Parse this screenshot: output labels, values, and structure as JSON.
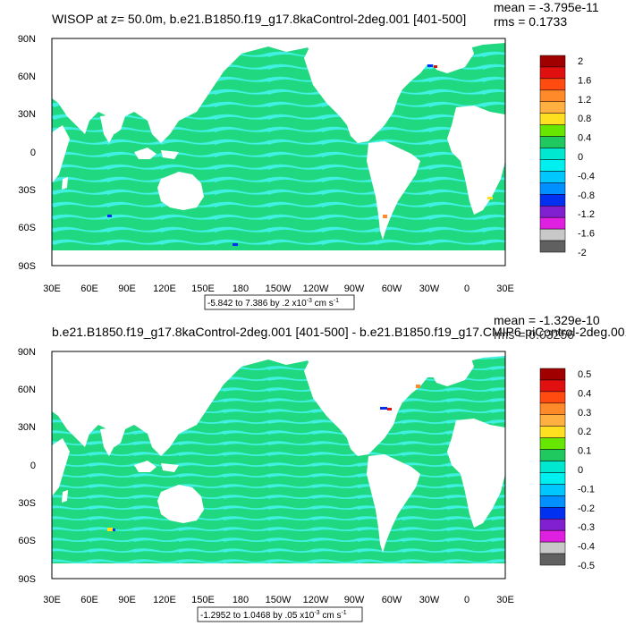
{
  "panels": [
    {
      "title": "WISOP at z=  50.0m, b.e21.B1850.f19_g17.8kaControl-2deg.001 [401-500]",
      "mean": "mean = -3.795e-11",
      "rms": "rms = 0.1733",
      "range_label": "-5.842 to 7.386 by .2 x10",
      "range_exp": "-3",
      "range_unit": " cm s",
      "range_unit_exp": "-1",
      "colorbar": {
        "labels": [
          "2",
          "1.6",
          "1.2",
          "0.8",
          "0.4",
          "0",
          "-0.4",
          "-0.8",
          "-1.2",
          "-1.6",
          "-2"
        ],
        "colors": [
          "#a00000",
          "#e01010",
          "#ff4a10",
          "#ff8a2a",
          "#ffb040",
          "#ffe020",
          "#66e600",
          "#20c860",
          "#00e8d0",
          "#00f0f0",
          "#00c8ff",
          "#0090ff",
          "#0030f0",
          "#8020d0",
          "#e020e0",
          "#c8c8c8",
          "#606060"
        ]
      }
    },
    {
      "title": "b.e21.B1850.f19_g17.8kaControl-2deg.001 [401-500] - b.e21.B1850.f19_g17.CMIP6-piControl-2deg.001",
      "mean": "mean = -1.329e-10",
      "rms": "rms = 0.03256",
      "range_label": "-1.2952 to 1.0468 by .05 x10",
      "range_exp": "-3",
      "range_unit": " cm s",
      "range_unit_exp": "-1",
      "colorbar": {
        "labels": [
          "0.5",
          "0.4",
          "0.3",
          "0.2",
          "0.1",
          "0",
          "-0.1",
          "-0.2",
          "-0.3",
          "-0.4",
          "-0.5"
        ],
        "colors": [
          "#a00000",
          "#e01010",
          "#ff4a10",
          "#ff8a2a",
          "#ffb040",
          "#ffe020",
          "#66e600",
          "#20c860",
          "#00e8d0",
          "#00f0f0",
          "#00c8ff",
          "#0090ff",
          "#0030f0",
          "#8020d0",
          "#e020e0",
          "#c8c8c8",
          "#606060"
        ]
      }
    }
  ],
  "axes": {
    "lat_labels": [
      "90N",
      "60N",
      "30N",
      "0",
      "30S",
      "60S",
      "90S"
    ],
    "lon_labels": [
      "30E",
      "60E",
      "90E",
      "120E",
      "150E",
      "180",
      "150W",
      "120W",
      "90W",
      "60W",
      "30W",
      "0",
      "30E"
    ]
  },
  "colors": {
    "ocean_base": "#20d880",
    "ocean_band": "#40f0e0",
    "land": "#ffffff"
  }
}
